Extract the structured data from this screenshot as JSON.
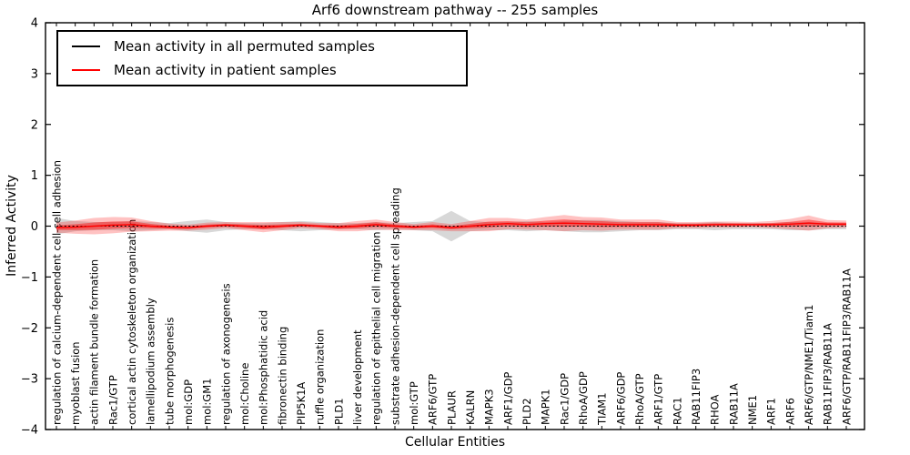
{
  "chart_data": {
    "type": "line",
    "title": "Arf6 downstream pathway -- 255 samples",
    "xlabel": "Cellular Entities",
    "ylabel": "Inferred Activity",
    "ylim": [
      -4,
      4
    ],
    "yticks": [
      -4,
      -3,
      -2,
      -1,
      0,
      1,
      2,
      3,
      4
    ],
    "grid": false,
    "legend_position": "upper left",
    "categories": [
      "regulation of calcium-dependent cell-cell adhesion",
      "myoblast fusion",
      "actin filament bundle formation",
      "Rac1/GTP",
      "cortical actin cytoskeleton organization",
      "lamellipodium assembly",
      "tube morphogenesis",
      "mol:GDP",
      "mol:GM1",
      "regulation of axonogenesis",
      "mol:Choline",
      "mol:Phosphatidic acid",
      "fibronectin binding",
      "PIP5K1A",
      "ruffle organization",
      "PLD1",
      "liver development",
      "regulation of epithelial cell migration",
      "substrate adhesion-dependent cell spreading",
      "mol:GTP",
      "ARF6/GTP",
      "PLAUR",
      "KALRN",
      "MAPK3",
      "ARF1/GDP",
      "PLD2",
      "MAPK1",
      "Rac1/GDP",
      "RhoA/GDP",
      "TIAM1",
      "ARF6/GDP",
      "RhoA/GTP",
      "ARF1/GTP",
      "RAC1",
      "RAB11FIP3",
      "RHOA",
      "RAB11A",
      "NME1",
      "ARF1",
      "ARF6",
      "ARF6/GTP/NME1/Tiam1",
      "RAB11FIP3/RAB11A",
      "ARF6/GTP/RAB11FIP3/RAB11A"
    ],
    "series": [
      {
        "name": "Mean activity in all permuted samples",
        "color": "#000000",
        "line_style": "dashed",
        "mean": [
          0,
          0,
          0,
          0,
          0,
          0,
          0,
          0,
          0,
          0,
          0,
          0,
          0,
          0,
          0,
          0,
          0,
          0,
          0,
          0,
          0,
          0,
          0,
          0,
          0,
          0,
          0,
          0,
          0,
          0,
          0,
          0,
          0,
          0,
          0,
          0,
          0,
          0,
          0,
          0,
          0,
          0,
          0
        ],
        "std": [
          0.16,
          0.1,
          0.08,
          0.08,
          0.1,
          0.08,
          0.06,
          0.1,
          0.13,
          0.08,
          0.06,
          0.06,
          0.08,
          0.1,
          0.08,
          0.06,
          0.06,
          0.08,
          0.06,
          0.08,
          0.1,
          0.3,
          0.1,
          0.08,
          0.08,
          0.1,
          0.08,
          0.1,
          0.12,
          0.12,
          0.1,
          0.08,
          0.08,
          0.06,
          0.06,
          0.08,
          0.06,
          0.06,
          0.06,
          0.08,
          0.08,
          0.06,
          0.06
        ]
      },
      {
        "name": "Mean activity in patient samples",
        "color": "#ff0000",
        "line_style": "solid",
        "mean": [
          -0.03,
          -0.02,
          0.0,
          0.02,
          0.03,
          0.0,
          -0.02,
          -0.03,
          0.0,
          0.02,
          0.0,
          -0.02,
          0.0,
          0.02,
          0.0,
          -0.02,
          0.0,
          0.03,
          0.0,
          -0.02,
          0.0,
          -0.03,
          0.0,
          0.03,
          0.05,
          0.03,
          0.05,
          0.06,
          0.05,
          0.04,
          0.03,
          0.03,
          0.03,
          0.02,
          0.02,
          0.03,
          0.03,
          0.03,
          0.03,
          0.04,
          0.06,
          0.04,
          0.04
        ],
        "std": [
          0.1,
          0.13,
          0.16,
          0.16,
          0.14,
          0.1,
          0.07,
          0.06,
          0.07,
          0.06,
          0.08,
          0.1,
          0.08,
          0.06,
          0.06,
          0.08,
          0.1,
          0.1,
          0.08,
          0.06,
          0.08,
          0.07,
          0.1,
          0.13,
          0.11,
          0.1,
          0.13,
          0.16,
          0.13,
          0.13,
          0.1,
          0.1,
          0.1,
          0.06,
          0.06,
          0.06,
          0.06,
          0.05,
          0.07,
          0.1,
          0.15,
          0.08,
          0.07
        ]
      }
    ]
  }
}
